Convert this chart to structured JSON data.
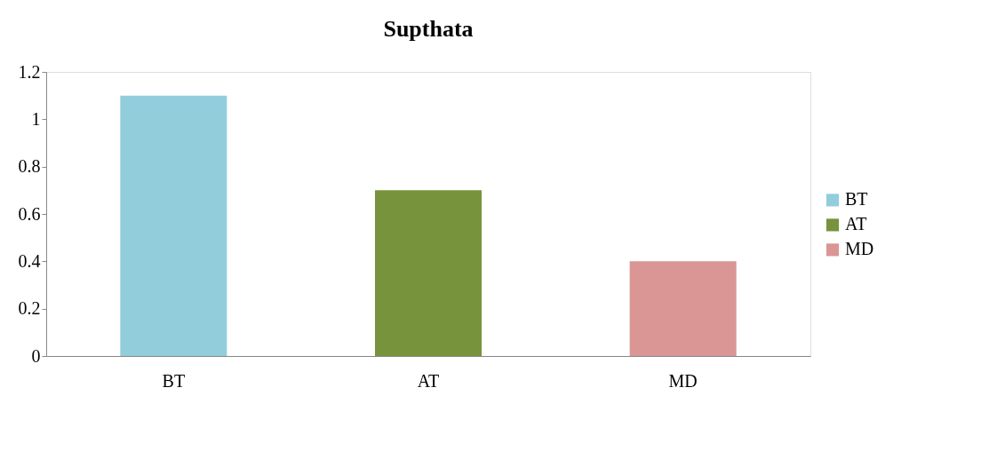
{
  "chart_data": {
    "type": "bar",
    "title": "Supthata",
    "categories": [
      "BT",
      "AT",
      "MD"
    ],
    "series": [
      {
        "name": "BT",
        "color": "#92cddc",
        "values": [
          1.1,
          null,
          null
        ]
      },
      {
        "name": "AT",
        "color": "#77933c",
        "values": [
          null,
          0.7,
          null
        ]
      },
      {
        "name": "MD",
        "color": "#d99694",
        "values": [
          null,
          null,
          0.4
        ]
      }
    ],
    "ylim": [
      0,
      1.2
    ],
    "yticks": [
      0,
      0.2,
      0.4,
      0.6,
      0.8,
      1,
      1.2
    ],
    "legend": "right"
  }
}
